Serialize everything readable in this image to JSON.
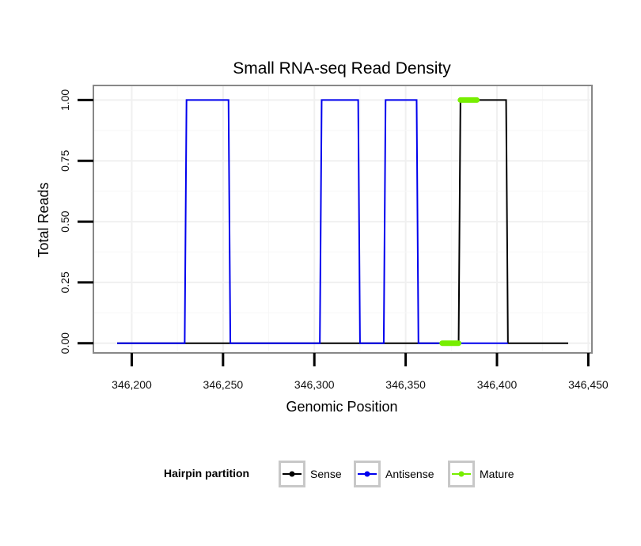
{
  "chart_data": {
    "type": "line",
    "title": "Small RNA-seq Read Density",
    "xlabel": "Genomic Position",
    "ylabel": "Total Reads",
    "xlim": [
      346179,
      346452
    ],
    "ylim": [
      -0.04,
      1.06
    ],
    "x_ticks": [
      346200,
      346250,
      346300,
      346350,
      346400,
      346450
    ],
    "x_tick_labels": [
      "346,200",
      "346,250",
      "346,300",
      "346,350",
      "346,400",
      "346,450"
    ],
    "y_ticks": [
      0,
      0.25,
      0.5,
      0.75,
      1
    ],
    "y_tick_labels": [
      "0.00",
      "0.25",
      "0.50",
      "0.75",
      "1.00"
    ],
    "grid": true,
    "legend": {
      "title": "Hairpin partition",
      "position": "bottom",
      "entries": [
        "Sense",
        "Antisense",
        "Mature"
      ]
    },
    "series": [
      {
        "name": "Sense",
        "color": "#000000",
        "x": [
          346192,
          346379,
          346380,
          346405,
          346406,
          346439
        ],
        "y": [
          0,
          0,
          1,
          1,
          0,
          0
        ]
      },
      {
        "name": "Antisense",
        "color": "#0000ee",
        "x": [
          346192,
          346229,
          346230,
          346253,
          346254,
          346303,
          346304,
          346324,
          346325,
          346338,
          346339,
          346356,
          346357,
          346406
        ],
        "y": [
          0,
          0,
          1,
          1,
          0,
          0,
          1,
          1,
          0,
          0,
          1,
          1,
          0,
          0
        ]
      },
      {
        "name": "Mature",
        "color": "#77ee00",
        "segments": [
          {
            "x": [
              346370,
              346379
            ],
            "y": [
              0,
              0
            ]
          },
          {
            "x": [
              346380,
              346389
            ],
            "y": [
              1,
              1
            ]
          }
        ]
      }
    ]
  }
}
